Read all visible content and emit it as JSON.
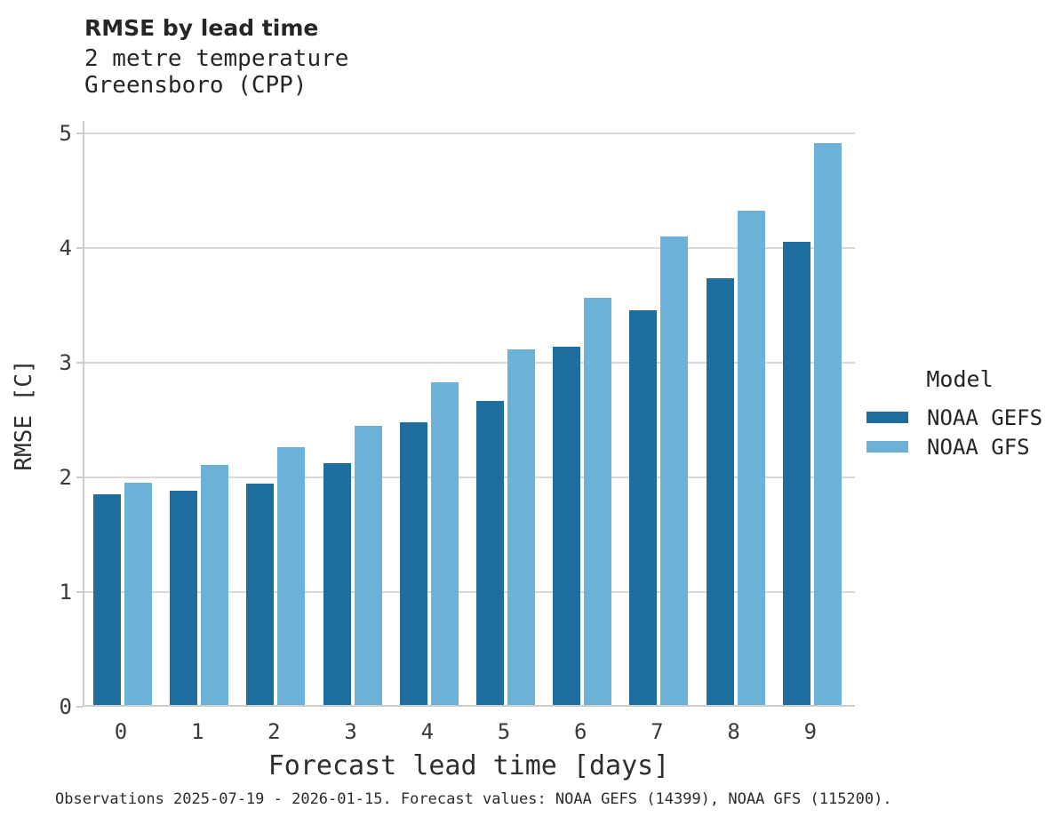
{
  "chart_data": {
    "type": "bar",
    "title": "RMSE by lead time",
    "subtitle_lines": [
      "2 metre temperature",
      "Greensboro (CPP)"
    ],
    "xlabel": "Forecast lead time [days]",
    "ylabel": "RMSE [C]",
    "categories": [
      "0",
      "1",
      "2",
      "3",
      "4",
      "5",
      "6",
      "7",
      "8",
      "9"
    ],
    "series": [
      {
        "name": "NOAA GEFS",
        "color": "#1d6e9c",
        "values": [
          1.84,
          1.87,
          1.93,
          2.11,
          2.46,
          2.65,
          3.12,
          3.44,
          3.72,
          4.04
        ]
      },
      {
        "name": "NOAA GFS",
        "color": "#6db0d8",
        "values": [
          1.94,
          2.09,
          2.25,
          2.43,
          2.81,
          3.1,
          3.55,
          4.08,
          4.31,
          4.9
        ]
      }
    ],
    "ylim": [
      0,
      5
    ],
    "yticks": [
      0,
      1,
      2,
      3,
      4,
      5
    ],
    "grid": "horizontal",
    "legend": {
      "title": "Model",
      "position": "right"
    },
    "footer": "Observations 2025-07-19 - 2026-01-15. Forecast values: NOAA GEFS (14399), NOAA GFS (115200)."
  },
  "colors": {
    "grid": "#d8d8d8",
    "spine": "#cccccc",
    "gefs": "#1d6e9c",
    "gfs": "#6db0d8"
  }
}
